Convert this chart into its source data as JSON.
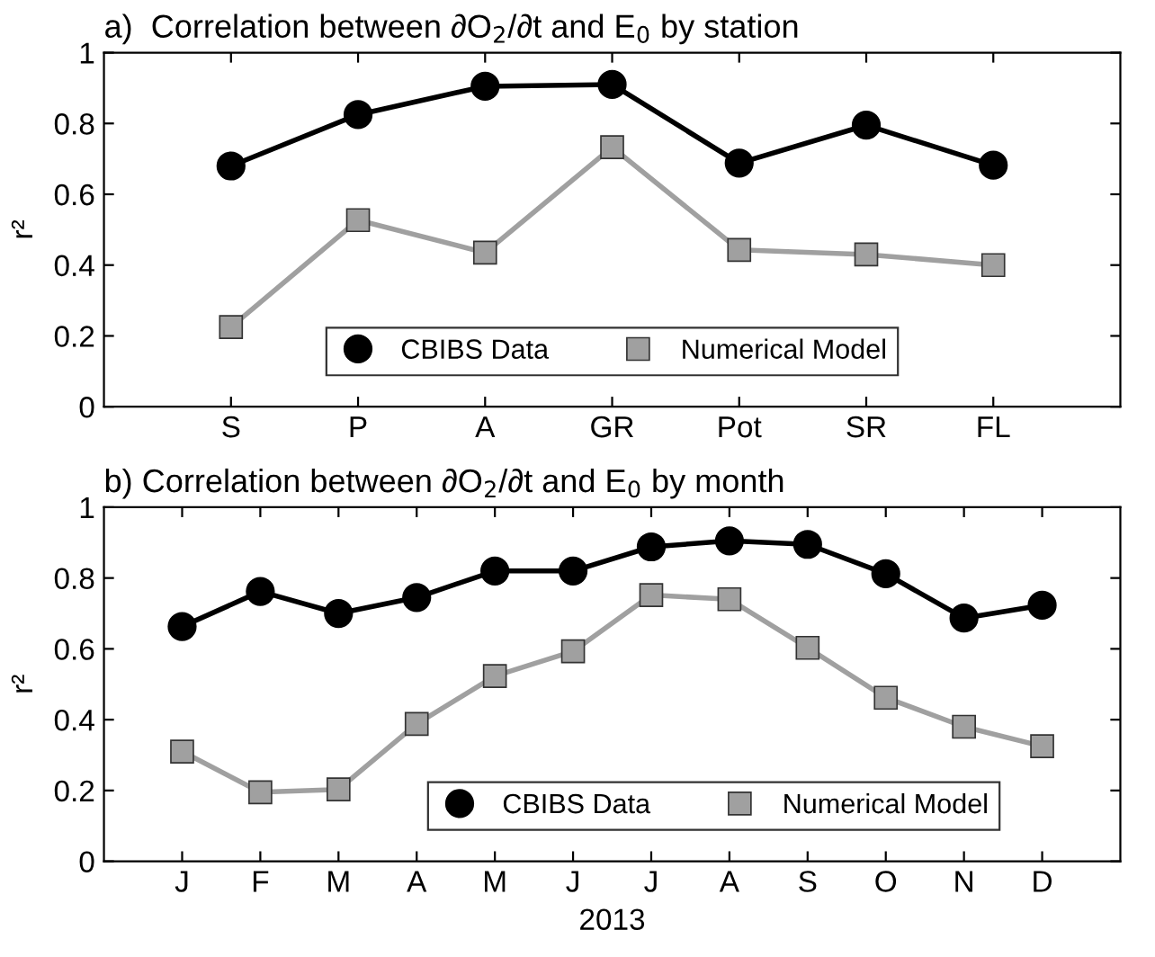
{
  "chart_data": [
    {
      "type": "line",
      "title": "a)  Correlation between ∂O$_{2}$/∂t and E$_{0}$ by station",
      "ylabel": "r²",
      "categories": [
        "S",
        "P",
        "A",
        "GR",
        "Pot",
        "SR",
        "FL"
      ],
      "ylim": [
        0,
        1
      ],
      "yticks": [
        0,
        0.2,
        0.4,
        0.6,
        0.8,
        1
      ],
      "grid": false,
      "legend": "bottom",
      "series": [
        {
          "name": "CBIBS Data",
          "color": "#000000",
          "marker": "circle",
          "values": [
            0.68,
            0.825,
            0.905,
            0.91,
            0.688,
            0.795,
            0.682
          ]
        },
        {
          "name": "Numerical Model",
          "color": "#a0a0a0",
          "marker": "square",
          "values": [
            0.225,
            0.527,
            0.435,
            0.733,
            0.443,
            0.43,
            0.4
          ]
        }
      ]
    },
    {
      "type": "line",
      "title": "b) Correlation between ∂O$_{2}$/∂t and E$_{0}$ by month",
      "ylabel": "r²",
      "xlabel": "2013",
      "categories": [
        "J",
        "F",
        "M",
        "A",
        "M",
        "J",
        "J",
        "A",
        "S",
        "O",
        "N",
        "D"
      ],
      "ylim": [
        0,
        1
      ],
      "yticks": [
        0,
        0.2,
        0.4,
        0.6,
        0.8,
        1
      ],
      "grid": false,
      "legend": "bottom",
      "series": [
        {
          "name": "CBIBS Data",
          "color": "#000000",
          "marker": "circle",
          "values": [
            0.663,
            0.762,
            0.7,
            0.745,
            0.82,
            0.82,
            0.888,
            0.905,
            0.895,
            0.812,
            0.687,
            0.723
          ]
        },
        {
          "name": "Numerical Model",
          "color": "#a0a0a0",
          "marker": "square",
          "values": [
            0.31,
            0.195,
            0.203,
            0.388,
            0.523,
            0.593,
            0.752,
            0.74,
            0.603,
            0.462,
            0.38,
            0.325
          ]
        }
      ]
    }
  ]
}
